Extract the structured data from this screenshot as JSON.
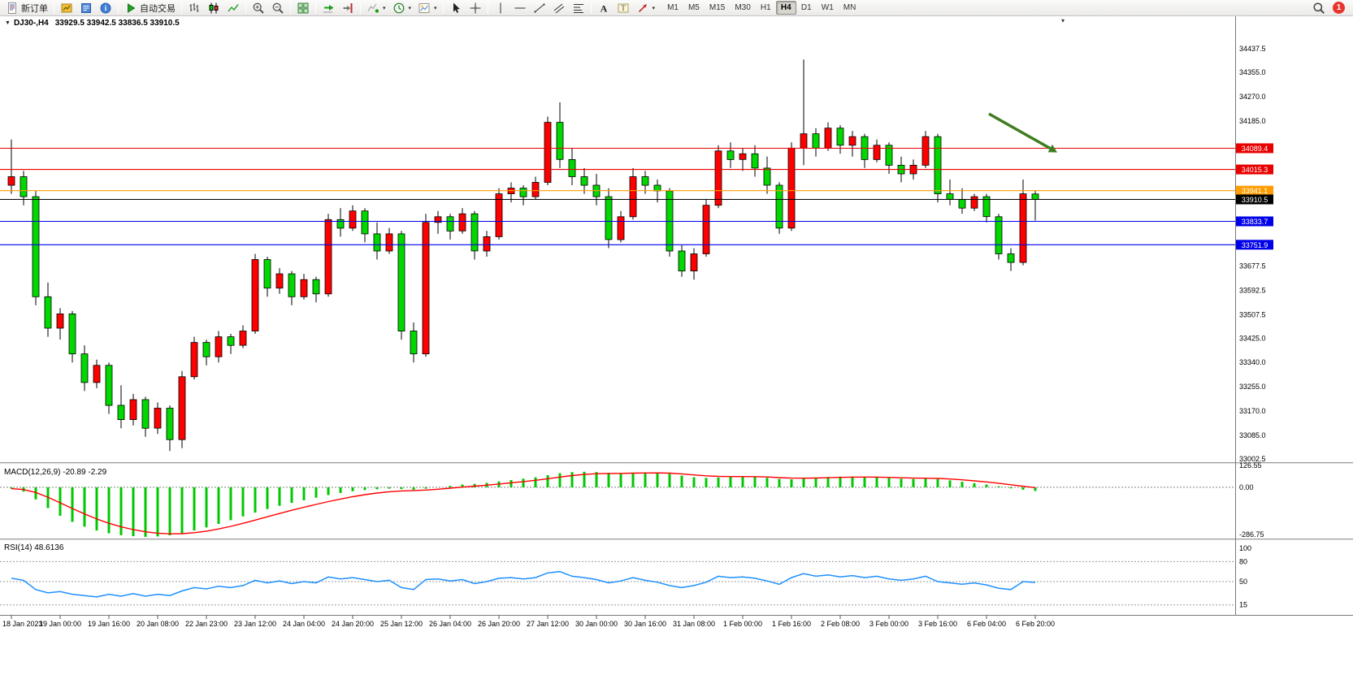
{
  "toolbar": {
    "dropdown_glyph": "▾",
    "overflow_glyph": "▾",
    "notification_count": "1",
    "groups": [
      [
        {
          "icon": "new-order",
          "name": "new-order-button",
          "label": "新订单"
        }
      ],
      [
        {
          "icon": "charts",
          "name": "charts-button"
        },
        {
          "icon": "market-watch",
          "name": "market-watch-button"
        },
        {
          "icon": "help",
          "name": "help-button"
        }
      ],
      [
        {
          "icon": "autotrading",
          "name": "autotrading-button",
          "label": "自动交易"
        }
      ],
      [
        {
          "icon": "bars",
          "name": "bars-chart-button"
        },
        {
          "icon": "candles",
          "name": "candlestick-chart-button"
        },
        {
          "icon": "line-chart",
          "name": "line-chart-button"
        }
      ],
      [
        {
          "icon": "zoom-in",
          "name": "zoom-in-button"
        },
        {
          "icon": "zoom-out",
          "name": "zoom-out-button"
        }
      ],
      [
        {
          "icon": "tile-windows",
          "name": "tile-windows-button"
        }
      ],
      [
        {
          "icon": "auto-scroll",
          "name": "auto-scroll-button"
        },
        {
          "icon": "chart-shift",
          "name": "chart-shift-button"
        }
      ],
      [
        {
          "icon": "indicators",
          "name": "indicators-button",
          "dropdown": true
        },
        {
          "icon": "periods",
          "name": "periods-button",
          "dropdown": true
        },
        {
          "icon": "templates",
          "name": "templates-button",
          "dropdown": true
        }
      ],
      [
        {
          "icon": "cursor",
          "name": "cursor-button"
        },
        {
          "icon": "crosshair",
          "name": "crosshair-button"
        }
      ],
      [
        {
          "icon": "vline",
          "name": "vertical-line-button"
        },
        {
          "icon": "hline",
          "name": "horizontal-line-button"
        },
        {
          "icon": "trendline",
          "name": "trendline-button"
        },
        {
          "icon": "channel",
          "name": "channel-button"
        },
        {
          "icon": "fibonacci",
          "name": "fibonacci-button"
        }
      ],
      [
        {
          "icon": "text",
          "name": "text-button"
        },
        {
          "icon": "text-label",
          "name": "text-label-button"
        },
        {
          "icon": "arrows-tool",
          "name": "arrows-button",
          "dropdown": true
        }
      ]
    ],
    "timeframes": {
      "labels": [
        "M1",
        "M5",
        "M15",
        "M30",
        "H1",
        "H4",
        "D1",
        "W1",
        "MN"
      ],
      "active": "H4"
    }
  },
  "chart_data": {
    "type": "candlestick",
    "title": "DJ30-,H4",
    "menu_glyph": "▼",
    "ohlc_header": "33929.5 33942.5 33836.5 33910.5",
    "colors": {
      "bull": "#ff0000",
      "bear": "#00d800",
      "wick": "#000000",
      "macd_hist": "#00c800",
      "macd_signal": "#ff0000",
      "rsi": "#1e90ff"
    },
    "candles": [
      [
        33960,
        34120,
        33930,
        33990
      ],
      [
        33990,
        34010,
        33890,
        33920
      ],
      [
        33920,
        33940,
        33540,
        33570
      ],
      [
        33570,
        33620,
        33430,
        33460
      ],
      [
        33460,
        33530,
        33420,
        33510
      ],
      [
        33510,
        33520,
        33340,
        33370
      ],
      [
        33370,
        33400,
        33240,
        33270
      ],
      [
        33270,
        33350,
        33250,
        33330
      ],
      [
        33330,
        33340,
        33160,
        33190
      ],
      [
        33190,
        33260,
        33110,
        33140
      ],
      [
        33140,
        33230,
        33120,
        33210
      ],
      [
        33210,
        33220,
        33080,
        33110
      ],
      [
        33110,
        33200,
        33090,
        33180
      ],
      [
        33180,
        33190,
        33030,
        33070
      ],
      [
        33070,
        33310,
        33040,
        33290
      ],
      [
        33290,
        33430,
        33280,
        33410
      ],
      [
        33410,
        33420,
        33330,
        33360
      ],
      [
        33360,
        33450,
        33340,
        33430
      ],
      [
        33430,
        33440,
        33370,
        33400
      ],
      [
        33400,
        33470,
        33390,
        33450
      ],
      [
        33450,
        33720,
        33440,
        33700
      ],
      [
        33700,
        33710,
        33570,
        33600
      ],
      [
        33600,
        33670,
        33580,
        33650
      ],
      [
        33650,
        33660,
        33540,
        33570
      ],
      [
        33570,
        33650,
        33560,
        33630
      ],
      [
        33630,
        33640,
        33550,
        33580
      ],
      [
        33580,
        33860,
        33570,
        33840
      ],
      [
        33840,
        33880,
        33780,
        33810
      ],
      [
        33810,
        33890,
        33800,
        33870
      ],
      [
        33870,
        33880,
        33760,
        33790
      ],
      [
        33790,
        33830,
        33700,
        33730
      ],
      [
        33730,
        33810,
        33720,
        33790
      ],
      [
        33790,
        33800,
        33420,
        33450
      ],
      [
        33450,
        33480,
        33340,
        33370
      ],
      [
        33370,
        33860,
        33360,
        33830
      ],
      [
        33830,
        33870,
        33790,
        33850
      ],
      [
        33850,
        33860,
        33770,
        33800
      ],
      [
        33800,
        33880,
        33790,
        33860
      ],
      [
        33860,
        33870,
        33700,
        33730
      ],
      [
        33730,
        33800,
        33710,
        33780
      ],
      [
        33780,
        33950,
        33770,
        33930
      ],
      [
        33930,
        33970,
        33900,
        33950
      ],
      [
        33950,
        33960,
        33890,
        33920
      ],
      [
        33920,
        33990,
        33910,
        33970
      ],
      [
        33970,
        34200,
        33960,
        34180
      ],
      [
        34180,
        34250,
        34020,
        34050
      ],
      [
        34050,
        34090,
        33960,
        33990
      ],
      [
        33990,
        34020,
        33930,
        33960
      ],
      [
        33960,
        34000,
        33890,
        33920
      ],
      [
        33920,
        33950,
        33740,
        33770
      ],
      [
        33770,
        33870,
        33760,
        33850
      ],
      [
        33850,
        34020,
        33840,
        33990
      ],
      [
        33990,
        34010,
        33930,
        33960
      ],
      [
        33960,
        33980,
        33900,
        33940
      ],
      [
        33940,
        33950,
        33710,
        33730
      ],
      [
        33730,
        33750,
        33640,
        33660
      ],
      [
        33660,
        33740,
        33630,
        33720
      ],
      [
        33720,
        33910,
        33710,
        33890
      ],
      [
        33890,
        34100,
        33880,
        34080
      ],
      [
        34080,
        34110,
        34020,
        34050
      ],
      [
        34050,
        34090,
        34010,
        34070
      ],
      [
        34070,
        34100,
        33990,
        34020
      ],
      [
        34020,
        34060,
        33930,
        33960
      ],
      [
        33960,
        33970,
        33790,
        33810
      ],
      [
        33810,
        34110,
        33800,
        34090
      ],
      [
        34090,
        34400,
        34030,
        34140
      ],
      [
        34140,
        34160,
        34060,
        34090
      ],
      [
        34090,
        34180,
        34080,
        34160
      ],
      [
        34160,
        34170,
        34070,
        34100
      ],
      [
        34100,
        34150,
        34060,
        34130
      ],
      [
        34130,
        34140,
        34020,
        34050
      ],
      [
        34050,
        34120,
        34040,
        34100
      ],
      [
        34100,
        34110,
        34000,
        34030
      ],
      [
        34030,
        34060,
        33970,
        34000
      ],
      [
        34000,
        34050,
        33980,
        34030
      ],
      [
        34030,
        34150,
        34020,
        34130
      ],
      [
        34130,
        34140,
        33900,
        33930
      ],
      [
        33930,
        33980,
        33890,
        33910
      ],
      [
        33910,
        33950,
        33860,
        33880
      ],
      [
        33880,
        33930,
        33870,
        33920
      ],
      [
        33920,
        33930,
        33830,
        33850
      ],
      [
        33850,
        33860,
        33700,
        33720
      ],
      [
        33720,
        33740,
        33660,
        33690
      ],
      [
        33690,
        33980,
        33680,
        33930
      ],
      [
        33929.5,
        33942.5,
        33836.5,
        33910.5
      ]
    ],
    "price_axis_labels": [
      "34437.5",
      "34355.0",
      "34270.0",
      "34185.0",
      "33677.5",
      "33592.5",
      "33507.5",
      "33425.0",
      "33340.0",
      "33255.0",
      "33170.0",
      "33085.0",
      "33002.5"
    ],
    "lines": [
      {
        "price": 34089.4,
        "label": "34089.4",
        "color": "#e80000"
      },
      {
        "price": 34015.3,
        "label": "34015.3",
        "color": "#e80000"
      },
      {
        "price": 33941.1,
        "label": "33941.1",
        "color": "#ff9d00"
      },
      {
        "price": 33910.5,
        "label": "33910.5",
        "color": "#000000",
        "type": "bid"
      },
      {
        "price": 33833.7,
        "label": "33833.7",
        "color": "#0000e8"
      },
      {
        "price": 33751.9,
        "label": "33751.9",
        "color": "#0000e8"
      }
    ],
    "time_labels": [
      "18 Jan 2023",
      "19 Jan 00:00",
      "19 Jan 16:00",
      "20 Jan 08:00",
      "22 Jan 23:00",
      "23 Jan 12:00",
      "24 Jan 04:00",
      "24 Jan 20:00",
      "25 Jan 12:00",
      "26 Jan 04:00",
      "26 Jan 20:00",
      "27 Jan 12:00",
      "30 Jan 00:00",
      "30 Jan 16:00",
      "31 Jan 08:00",
      "1 Feb 00:00",
      "1 Feb 16:00",
      "2 Feb 08:00",
      "3 Feb 00:00",
      "3 Feb 16:00",
      "6 Feb 04:00",
      "6 Feb 20:00"
    ],
    "time_label_step": 4,
    "annotation_arrow": {
      "from_bar": 80.2,
      "from_price": 34210,
      "to_bar": 85.8,
      "to_price": 34075,
      "color": "#3f7d20"
    },
    "macd": {
      "title": "MACD(12,26,9) -20.89 -2.29",
      "values": [
        -8,
        -25,
        -70,
        -120,
        -165,
        -200,
        -228,
        -250,
        -266,
        -277,
        -283,
        -286.75,
        -284,
        -278,
        -266,
        -250,
        -232,
        -212,
        -190,
        -168,
        -146,
        -126,
        -107,
        -90,
        -75,
        -60,
        -45,
        -33,
        -23,
        -16,
        -11,
        -8,
        -10,
        -14,
        -8,
        0,
        8,
        16,
        20,
        26,
        34,
        42,
        50,
        58,
        70,
        82,
        88,
        90,
        88,
        84,
        82,
        84,
        86,
        84,
        78,
        68,
        58,
        54,
        56,
        60,
        62,
        60,
        55,
        48,
        46,
        52,
        56,
        60,
        62,
        62,
        60,
        58,
        54,
        50,
        48,
        52,
        48,
        40,
        32,
        24,
        16,
        6,
        -6,
        -14,
        -20.89
      ],
      "axis": [
        {
          "v": 126.55,
          "label": "126.55"
        },
        {
          "v": 0,
          "label": "0.00"
        },
        {
          "v": -286.75,
          "label": "-286.75"
        }
      ]
    },
    "rsi": {
      "title": "RSI(14) 48.6136",
      "values": [
        55,
        52,
        38,
        33,
        35,
        31,
        29,
        27,
        31,
        28,
        32,
        28,
        31,
        29,
        36,
        41,
        39,
        43,
        41,
        44,
        52,
        48,
        51,
        47,
        50,
        48,
        57,
        54,
        56,
        53,
        50,
        52,
        41,
        38,
        53,
        54,
        51,
        53,
        47,
        50,
        55,
        56,
        54,
        56,
        63,
        65,
        58,
        56,
        53,
        48,
        51,
        56,
        52,
        49,
        44,
        41,
        44,
        49,
        58,
        56,
        57,
        55,
        51,
        46,
        56,
        62,
        58,
        60,
        57,
        59,
        56,
        58,
        54,
        52,
        54,
        58,
        50,
        48,
        46,
        48,
        45,
        40,
        38,
        50,
        48.61
      ],
      "levels": [
        80,
        50,
        15
      ],
      "axis": [
        {
          "v": 100,
          "label": "100"
        },
        {
          "v": 80,
          "label": "80"
        },
        {
          "v": 50,
          "label": "50"
        },
        {
          "v": 15,
          "label": "15"
        }
      ]
    }
  }
}
